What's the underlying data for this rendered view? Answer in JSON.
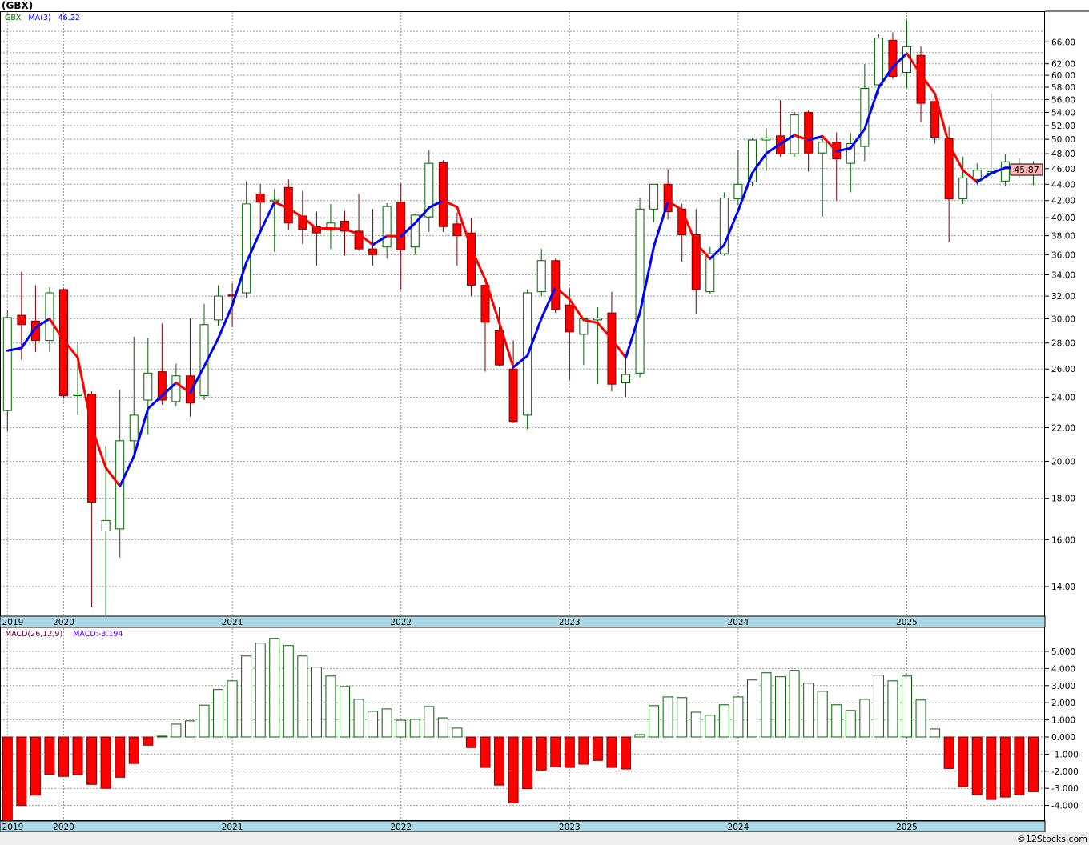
{
  "title": "(GBX)",
  "footer": "©12Stocks.com",
  "colors": {
    "up": "#006400",
    "down": "#ff0000",
    "down_edge": "#800000",
    "ma_up": "#0000ff",
    "ma_down": "#ff0000",
    "strip": "#add8e6",
    "price_tag": "#ffb4b4"
  },
  "chart_data": [
    {
      "type": "candlestick",
      "interval": "monthly",
      "symbol": "GBX",
      "legend": {
        "symbol": "GBX",
        "ma_label": "MA(3)",
        "ma_value": "46.22"
      },
      "last_price_label": "45.87",
      "y_scale": "log",
      "ylim": [
        12.6,
        72
      ],
      "y_ticks": [
        "14.00",
        "16.00",
        "18.00",
        "20.00",
        "22.00",
        "24.00",
        "26.00",
        "28.00",
        "30.00",
        "32.00",
        "34.00",
        "36.00",
        "38.00",
        "40.00",
        "42.00",
        "44.00",
        "46.00",
        "48.00",
        "50.00",
        "52.00",
        "54.00",
        "56.00",
        "58.00",
        "60.00",
        "62.00",
        "66.00"
      ],
      "x_ticks": [
        {
          "bar": 0,
          "label": "2019"
        },
        {
          "bar": 4,
          "label": "2020"
        },
        {
          "bar": 16,
          "label": "2021"
        },
        {
          "bar": 28,
          "label": "2022"
        },
        {
          "bar": 40,
          "label": "2023"
        },
        {
          "bar": 52,
          "label": "2024"
        },
        {
          "bar": 64,
          "label": "2025"
        }
      ],
      "ma3_initial": [
        27.4,
        27.6
      ],
      "ohlc": [
        [
          23.1,
          30.7,
          21.8,
          30.1
        ],
        [
          30.3,
          34.3,
          26.7,
          29.5
        ],
        [
          29.8,
          33.0,
          27.3,
          28.2
        ],
        [
          28.2,
          32.8,
          27.3,
          32.3
        ],
        [
          32.6,
          32.7,
          23.9,
          24.1
        ],
        [
          24.1,
          28.1,
          22.8,
          24.2
        ],
        [
          24.2,
          24.4,
          13.2,
          17.8
        ],
        [
          16.4,
          20.9,
          12.6,
          16.9
        ],
        [
          16.5,
          24.5,
          15.2,
          21.2
        ],
        [
          21.2,
          28.5,
          20.2,
          22.8
        ],
        [
          23.8,
          28.4,
          21.6,
          25.7
        ],
        [
          25.8,
          29.6,
          23.5,
          23.8
        ],
        [
          23.7,
          26.4,
          23.4,
          25.5
        ],
        [
          25.5,
          30.0,
          22.7,
          23.6
        ],
        [
          24.1,
          31.3,
          23.8,
          29.5
        ],
        [
          29.9,
          33.0,
          29.4,
          32.0
        ],
        [
          32.1,
          33.2,
          29.3,
          32.0
        ],
        [
          32.3,
          44.4,
          31.8,
          41.6
        ],
        [
          42.8,
          44.0,
          38.6,
          41.8
        ],
        [
          41.9,
          43.4,
          36.3,
          42.05
        ],
        [
          43.6,
          44.6,
          38.6,
          39.4
        ],
        [
          40.2,
          43.2,
          37.1,
          38.7
        ],
        [
          39.0,
          40.7,
          34.9,
          38.3
        ],
        [
          38.6,
          41.6,
          36.6,
          39.4
        ],
        [
          39.6,
          40.8,
          35.9,
          38.5
        ],
        [
          38.5,
          42.8,
          36.4,
          36.6
        ],
        [
          36.6,
          41.0,
          34.9,
          36.0
        ],
        [
          36.8,
          41.7,
          35.6,
          41.3
        ],
        [
          41.8,
          44.1,
          32.6,
          36.5
        ],
        [
          36.8,
          40.4,
          36.0,
          40.3
        ],
        [
          40.1,
          48.5,
          38.4,
          46.7
        ],
        [
          46.8,
          47.1,
          38.4,
          39.0
        ],
        [
          39.3,
          40.6,
          34.9,
          38.0
        ],
        [
          38.3,
          40.0,
          32.0,
          33.0
        ],
        [
          33.0,
          33.0,
          25.8,
          29.7
        ],
        [
          29.0,
          31.0,
          26.2,
          26.3
        ],
        [
          26.0,
          28.2,
          22.3,
          22.4
        ],
        [
          22.8,
          32.6,
          21.9,
          32.3
        ],
        [
          32.4,
          36.6,
          32.0,
          35.4
        ],
        [
          35.4,
          35.6,
          30.5,
          30.8
        ],
        [
          31.2,
          32.7,
          25.2,
          28.9
        ],
        [
          28.7,
          30.0,
          26.3,
          30.0
        ],
        [
          29.9,
          31.0,
          24.9,
          30.05
        ],
        [
          30.5,
          32.4,
          24.4,
          24.9
        ],
        [
          25.0,
          26.9,
          24.0,
          25.6
        ],
        [
          25.7,
          42.3,
          25.4,
          41.0
        ],
        [
          41.0,
          44.0,
          39.5,
          44.0
        ],
        [
          44.0,
          45.9,
          39.8,
          40.7
        ],
        [
          41.0,
          41.6,
          35.3,
          38.1
        ],
        [
          38.1,
          41.0,
          30.4,
          32.6
        ],
        [
          32.4,
          36.8,
          32.2,
          36.1
        ],
        [
          36.1,
          43.0,
          35.9,
          42.3
        ],
        [
          42.2,
          48.5,
          41.5,
          44.0
        ],
        [
          44.3,
          50.2,
          43.8,
          49.9
        ],
        [
          49.9,
          51.6,
          45.7,
          50.2
        ],
        [
          50.5,
          55.9,
          47.6,
          48.0
        ],
        [
          48.0,
          54.0,
          47.6,
          53.6
        ],
        [
          54.0,
          54.3,
          45.6,
          48.1
        ],
        [
          48.1,
          50.1,
          40.1,
          49.6
        ],
        [
          49.6,
          51.0,
          42.0,
          47.3
        ],
        [
          46.7,
          50.9,
          43.0,
          49.4
        ],
        [
          49.0,
          62.0,
          47.0,
          57.8
        ],
        [
          58.4,
          67.5,
          56.8,
          66.7
        ],
        [
          66.3,
          67.8,
          59.4,
          59.8
        ],
        [
          60.5,
          70.2,
          57.8,
          65.1
        ],
        [
          63.5,
          65.2,
          52.5,
          55.4
        ],
        [
          55.7,
          55.7,
          49.4,
          50.3
        ],
        [
          50.1,
          51.8,
          37.3,
          42.2
        ],
        [
          42.2,
          47.6,
          41.6,
          44.8
        ],
        [
          44.6,
          46.7,
          43.9,
          45.8
        ],
        [
          45.4,
          57.0,
          44.8,
          45.6
        ],
        [
          44.4,
          48.0,
          43.8,
          46.9
        ],
        [
          45.8,
          47.4,
          44.8,
          45.9
        ],
        [
          45.5,
          47.0,
          43.9,
          45.87
        ]
      ]
    },
    {
      "type": "bar",
      "title": "MACD(26,12,9)",
      "legend": {
        "label": "MACD(26,12,9)",
        "value_label": "MACD:-3.194"
      },
      "ylim": [
        -4.9,
        6.0
      ],
      "y_ticks": [
        "5.000",
        "4.000",
        "3.000",
        "2.000",
        "1.000",
        "0.000",
        "-1.000",
        "-2.000",
        "-3.000",
        "-4.000"
      ],
      "y_tick_values": [
        5,
        4,
        3,
        2,
        1,
        0,
        -1,
        -2,
        -3,
        -4
      ],
      "values": [
        -4.9,
        -4.0,
        -3.4,
        -2.17,
        -2.3,
        -2.2,
        -2.77,
        -3.0,
        -2.35,
        -1.55,
        -0.48,
        0.05,
        0.75,
        0.94,
        1.86,
        2.77,
        3.28,
        4.73,
        5.48,
        5.76,
        5.34,
        4.73,
        4.08,
        3.56,
        2.95,
        2.2,
        1.5,
        1.64,
        0.98,
        1.03,
        1.78,
        1.12,
        0.52,
        -0.62,
        -1.78,
        -2.81,
        -3.86,
        -3.02,
        -1.93,
        -1.75,
        -1.78,
        -1.59,
        -1.37,
        -1.78,
        -1.87,
        0.14,
        1.83,
        2.34,
        2.3,
        1.45,
        1.27,
        1.88,
        2.34,
        3.33,
        3.75,
        3.52,
        3.89,
        3.14,
        2.67,
        1.88,
        1.55,
        2.2,
        3.61,
        3.28,
        3.56,
        2.16,
        0.47,
        -1.84,
        -2.9,
        -3.37,
        -3.65,
        -3.51,
        -3.37,
        -3.194
      ]
    }
  ]
}
